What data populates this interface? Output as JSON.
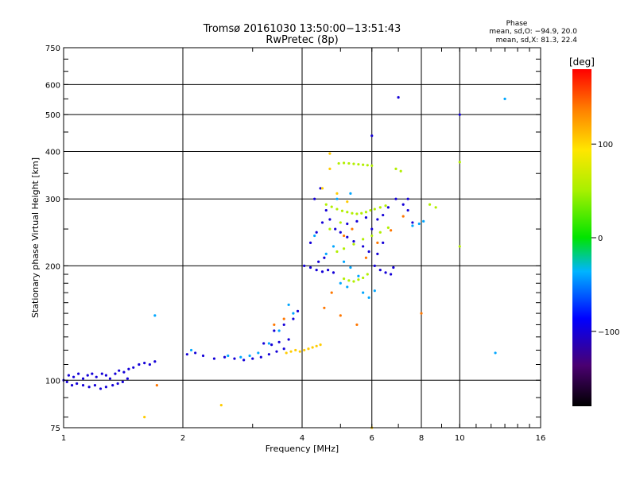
{
  "chart_data": {
    "type": "scatter",
    "title": "Tromsø 20161030 13:50:00−13:51:43",
    "subtitle": "RwPretec (8p)",
    "xlabel": "Frequency [MHz]",
    "ylabel": "Stationary phase Virtual Height [km]",
    "xscale": "log",
    "yscale": "log",
    "xlim": [
      1,
      16
    ],
    "ylim": [
      75,
      750
    ],
    "xticks": [
      "1",
      "2",
      "4",
      "6",
      "8",
      "10",
      "16"
    ],
    "yticks": [
      "75",
      "100",
      "200",
      "300",
      "400",
      "500",
      "600",
      "750"
    ],
    "xgrid": [
      2,
      4,
      6,
      8,
      10
    ],
    "ygrid": [
      100,
      200,
      300,
      400,
      500,
      600
    ],
    "grid": true,
    "stats": {
      "heading": "Phase",
      "line_o": "mean, sd,O: −94.9, 20.0",
      "line_x": "mean, sd,X:  81.3, 22.4"
    },
    "colorbar": {
      "label": "[deg]",
      "range": [
        -180,
        180
      ],
      "ticks": [
        "100",
        "0",
        "−100"
      ],
      "tick_values": [
        100,
        0,
        -100
      ]
    },
    "series": [
      {
        "phase": -100,
        "points": [
          [
            1.0,
            100
          ],
          [
            1.03,
            103
          ],
          [
            1.06,
            102
          ],
          [
            1.09,
            104
          ],
          [
            1.12,
            101
          ],
          [
            1.15,
            103
          ],
          [
            1.18,
            104
          ],
          [
            1.21,
            102
          ],
          [
            1.25,
            104
          ],
          [
            1.28,
            103
          ],
          [
            1.31,
            101
          ],
          [
            1.35,
            104
          ],
          [
            1.38,
            106
          ],
          [
            1.42,
            105
          ],
          [
            1.46,
            107
          ],
          [
            1.5,
            108
          ],
          [
            1.55,
            110
          ],
          [
            1.6,
            111
          ],
          [
            1.65,
            110
          ],
          [
            1.7,
            112
          ],
          [
            1.08,
            98
          ],
          [
            1.12,
            97
          ],
          [
            1.16,
            96
          ],
          [
            1.2,
            97
          ],
          [
            1.24,
            95
          ],
          [
            1.28,
            96
          ],
          [
            1.33,
            97
          ],
          [
            1.37,
            98
          ],
          [
            1.41,
            99
          ],
          [
            1.45,
            101
          ],
          [
            1.02,
            99
          ],
          [
            1.05,
            97
          ],
          [
            2.05,
            117
          ],
          [
            2.15,
            118
          ],
          [
            2.25,
            116
          ],
          [
            2.4,
            114
          ],
          [
            2.55,
            115
          ],
          [
            2.7,
            114
          ],
          [
            2.85,
            113
          ],
          [
            3.0,
            114
          ],
          [
            3.15,
            115
          ],
          [
            3.3,
            117
          ],
          [
            3.45,
            119
          ],
          [
            3.6,
            121
          ],
          [
            3.2,
            125
          ],
          [
            3.35,
            124
          ],
          [
            3.5,
            126
          ],
          [
            3.7,
            128
          ],
          [
            3.4,
            135
          ],
          [
            3.6,
            140
          ],
          [
            3.8,
            145
          ],
          [
            3.9,
            152
          ],
          [
            4.05,
            200
          ],
          [
            4.2,
            198
          ],
          [
            4.35,
            195
          ],
          [
            4.5,
            193
          ],
          [
            4.65,
            195
          ],
          [
            4.8,
            192
          ],
          [
            4.4,
            205
          ],
          [
            4.55,
            210
          ],
          [
            4.2,
            230
          ],
          [
            4.35,
            245
          ],
          [
            4.5,
            260
          ],
          [
            4.3,
            300
          ],
          [
            4.45,
            320
          ],
          [
            4.6,
            280
          ],
          [
            4.7,
            265
          ],
          [
            4.85,
            250
          ],
          [
            5.0,
            245
          ],
          [
            5.2,
            238
          ],
          [
            5.4,
            232
          ],
          [
            5.7,
            225
          ],
          [
            5.9,
            218
          ],
          [
            6.1,
            200
          ],
          [
            6.3,
            195
          ],
          [
            6.5,
            192
          ],
          [
            6.7,
            190
          ],
          [
            6.8,
            198
          ],
          [
            6.2,
            215
          ],
          [
            6.4,
            230
          ],
          [
            6.0,
            250
          ],
          [
            6.2,
            265
          ],
          [
            6.4,
            272
          ],
          [
            6.6,
            285
          ],
          [
            6.9,
            300
          ],
          [
            7.2,
            290
          ],
          [
            7.4,
            280
          ],
          [
            7.6,
            260
          ],
          [
            5.2,
            258
          ],
          [
            5.5,
            262
          ],
          [
            5.8,
            268
          ],
          [
            6.0,
            440
          ],
          [
            7.0,
            555
          ],
          [
            10.0,
            500
          ],
          [
            7.4,
            300
          ]
        ]
      },
      {
        "phase": -40,
        "points": [
          [
            1.7,
            148
          ],
          [
            2.1,
            120
          ],
          [
            2.6,
            116
          ],
          [
            2.8,
            115
          ],
          [
            2.95,
            116
          ],
          [
            3.1,
            118
          ],
          [
            3.3,
            125
          ],
          [
            3.5,
            135
          ],
          [
            3.8,
            150
          ],
          [
            3.7,
            158
          ],
          [
            4.6,
            215
          ],
          [
            4.8,
            225
          ],
          [
            5.1,
            205
          ],
          [
            5.3,
            198
          ],
          [
            5.55,
            188
          ],
          [
            5.7,
            170
          ],
          [
            5.9,
            165
          ],
          [
            6.1,
            172
          ],
          [
            5.0,
            180
          ],
          [
            5.2,
            176
          ],
          [
            7.6,
            255
          ],
          [
            7.9,
            258
          ],
          [
            8.1,
            262
          ],
          [
            4.3,
            240
          ],
          [
            4.9,
            300
          ],
          [
            5.3,
            310
          ],
          [
            12.3,
            118
          ],
          [
            13.0,
            550
          ]
        ]
      },
      {
        "phase": 55,
        "points": [
          [
            4.6,
            290
          ],
          [
            4.75,
            286
          ],
          [
            4.9,
            282
          ],
          [
            5.05,
            279
          ],
          [
            5.2,
            277
          ],
          [
            5.35,
            275
          ],
          [
            5.5,
            274
          ],
          [
            5.65,
            275
          ],
          [
            5.8,
            277
          ],
          [
            5.95,
            280
          ],
          [
            6.1,
            282
          ],
          [
            6.3,
            285
          ],
          [
            6.5,
            288
          ],
          [
            4.95,
            372
          ],
          [
            5.1,
            373
          ],
          [
            5.25,
            372
          ],
          [
            5.4,
            371
          ],
          [
            5.55,
            370
          ],
          [
            5.7,
            369
          ],
          [
            5.85,
            368
          ],
          [
            6.0,
            367
          ],
          [
            5.1,
            185
          ],
          [
            5.25,
            183
          ],
          [
            5.4,
            182
          ],
          [
            5.55,
            184
          ],
          [
            5.7,
            186
          ],
          [
            5.85,
            190
          ],
          [
            4.9,
            218
          ],
          [
            5.1,
            222
          ],
          [
            5.4,
            228
          ],
          [
            5.7,
            235
          ],
          [
            6.0,
            240
          ],
          [
            6.3,
            245
          ],
          [
            6.6,
            252
          ],
          [
            6.9,
            360
          ],
          [
            7.1,
            355
          ],
          [
            8.4,
            290
          ],
          [
            8.7,
            285
          ],
          [
            10.0,
            225
          ],
          [
            10.0,
            375
          ],
          [
            4.7,
            250
          ],
          [
            5.0,
            260
          ]
        ]
      },
      {
        "phase": 105,
        "points": [
          [
            3.65,
            118
          ],
          [
            3.75,
            119
          ],
          [
            3.85,
            120
          ],
          [
            3.95,
            119
          ],
          [
            4.05,
            120
          ],
          [
            4.15,
            121
          ],
          [
            4.25,
            122
          ],
          [
            4.35,
            123
          ],
          [
            4.45,
            124
          ],
          [
            4.5,
            320
          ],
          [
            4.7,
            360
          ],
          [
            4.9,
            310
          ],
          [
            5.2,
            295
          ],
          [
            1.6,
            80
          ],
          [
            2.5,
            86
          ],
          [
            4.7,
            395
          ],
          [
            6.0,
            75
          ]
        ]
      },
      {
        "phase": 140,
        "points": [
          [
            3.4,
            140
          ],
          [
            3.6,
            145
          ],
          [
            4.55,
            155
          ],
          [
            4.75,
            170
          ],
          [
            5.1,
            240
          ],
          [
            5.35,
            250
          ],
          [
            5.8,
            210
          ],
          [
            6.2,
            230
          ],
          [
            6.7,
            248
          ],
          [
            7.2,
            270
          ],
          [
            8.0,
            150
          ],
          [
            1.72,
            97
          ],
          [
            5.0,
            148
          ],
          [
            5.5,
            140
          ]
        ]
      }
    ]
  }
}
